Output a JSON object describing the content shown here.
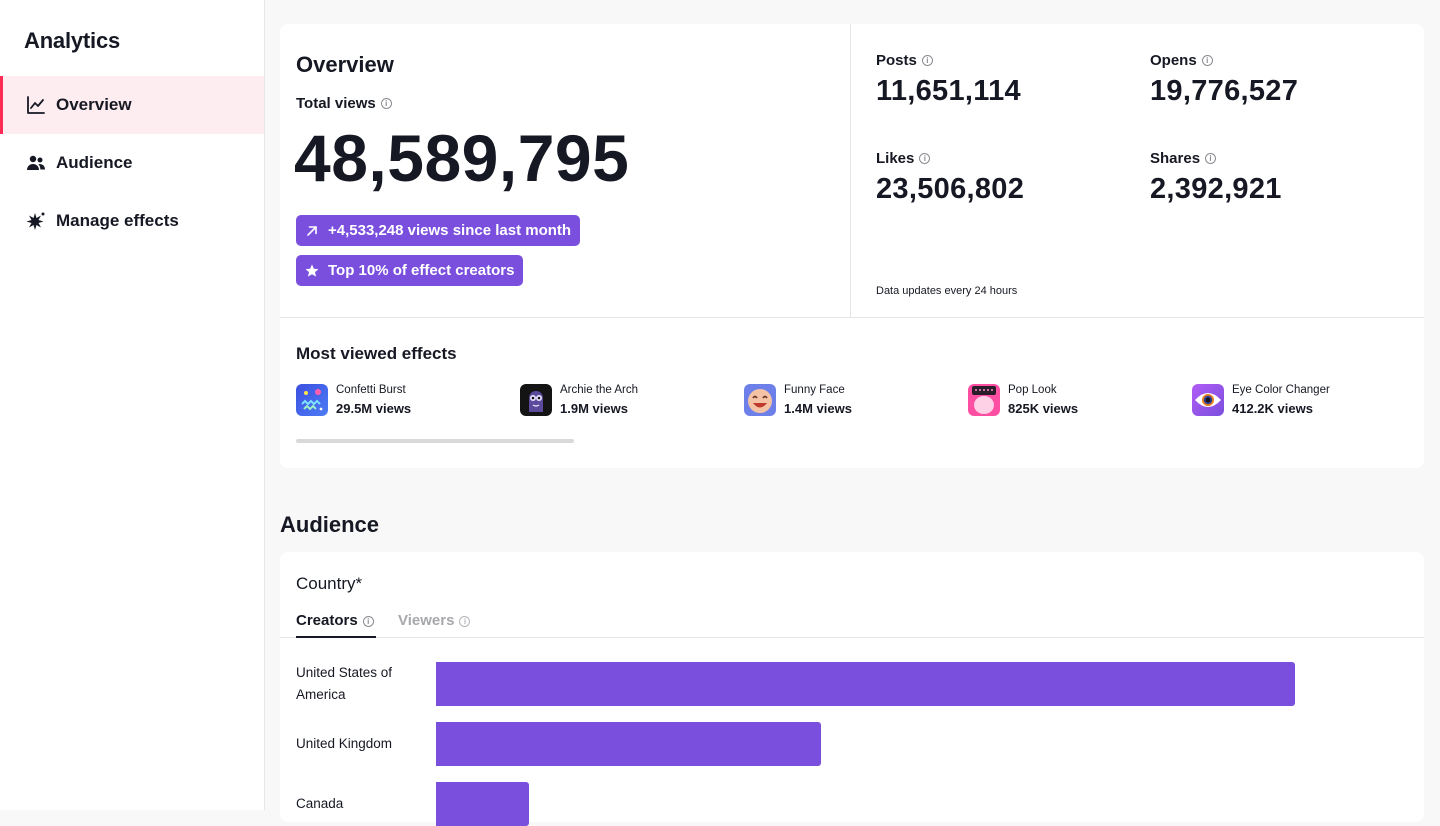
{
  "sidebar": {
    "title": "Analytics",
    "items": [
      {
        "label": "Overview",
        "icon": "line-chart-icon",
        "active": true
      },
      {
        "label": "Audience",
        "icon": "users-icon",
        "active": false
      },
      {
        "label": "Manage effects",
        "icon": "sparkle-effects-icon",
        "active": false
      }
    ]
  },
  "overview": {
    "title": "Overview",
    "total_views_label": "Total views",
    "total_views": "48,589,795",
    "badge_growth": "+4,533,248 views since last month",
    "badge_rank": "Top 10% of effect creators",
    "stats": {
      "posts": {
        "label": "Posts",
        "value": "11,651,114"
      },
      "opens": {
        "label": "Opens",
        "value": "19,776,527"
      },
      "likes": {
        "label": "Likes",
        "value": "23,506,802"
      },
      "shares": {
        "label": "Shares",
        "value": "2,392,921"
      }
    },
    "update_note": "Data updates every 24 hours"
  },
  "most_viewed": {
    "title": "Most viewed effects",
    "effects": [
      {
        "name": "Confetti Burst",
        "views": "29.5M views"
      },
      {
        "name": "Archie the Arch",
        "views": "1.9M views"
      },
      {
        "name": "Funny Face",
        "views": "1.4M views"
      },
      {
        "name": "Pop Look",
        "views": "825K views"
      },
      {
        "name": "Eye Color Changer",
        "views": "412.2K views"
      }
    ]
  },
  "audience": {
    "heading": "Audience",
    "country_title": "Country*",
    "tabs": [
      {
        "label": "Creators",
        "active": true
      },
      {
        "label": "Viewers",
        "active": false
      }
    ],
    "countries": [
      {
        "label": "United States of America",
        "share": 1.0
      },
      {
        "label": "United Kingdom",
        "share": 0.448
      },
      {
        "label": "Canada",
        "share": 0.108
      }
    ]
  },
  "colors": {
    "accent": "#7b4fde",
    "active_nav_bg": "#fdedf0",
    "active_nav_marker": "#fe2c55",
    "text": "#161823"
  }
}
